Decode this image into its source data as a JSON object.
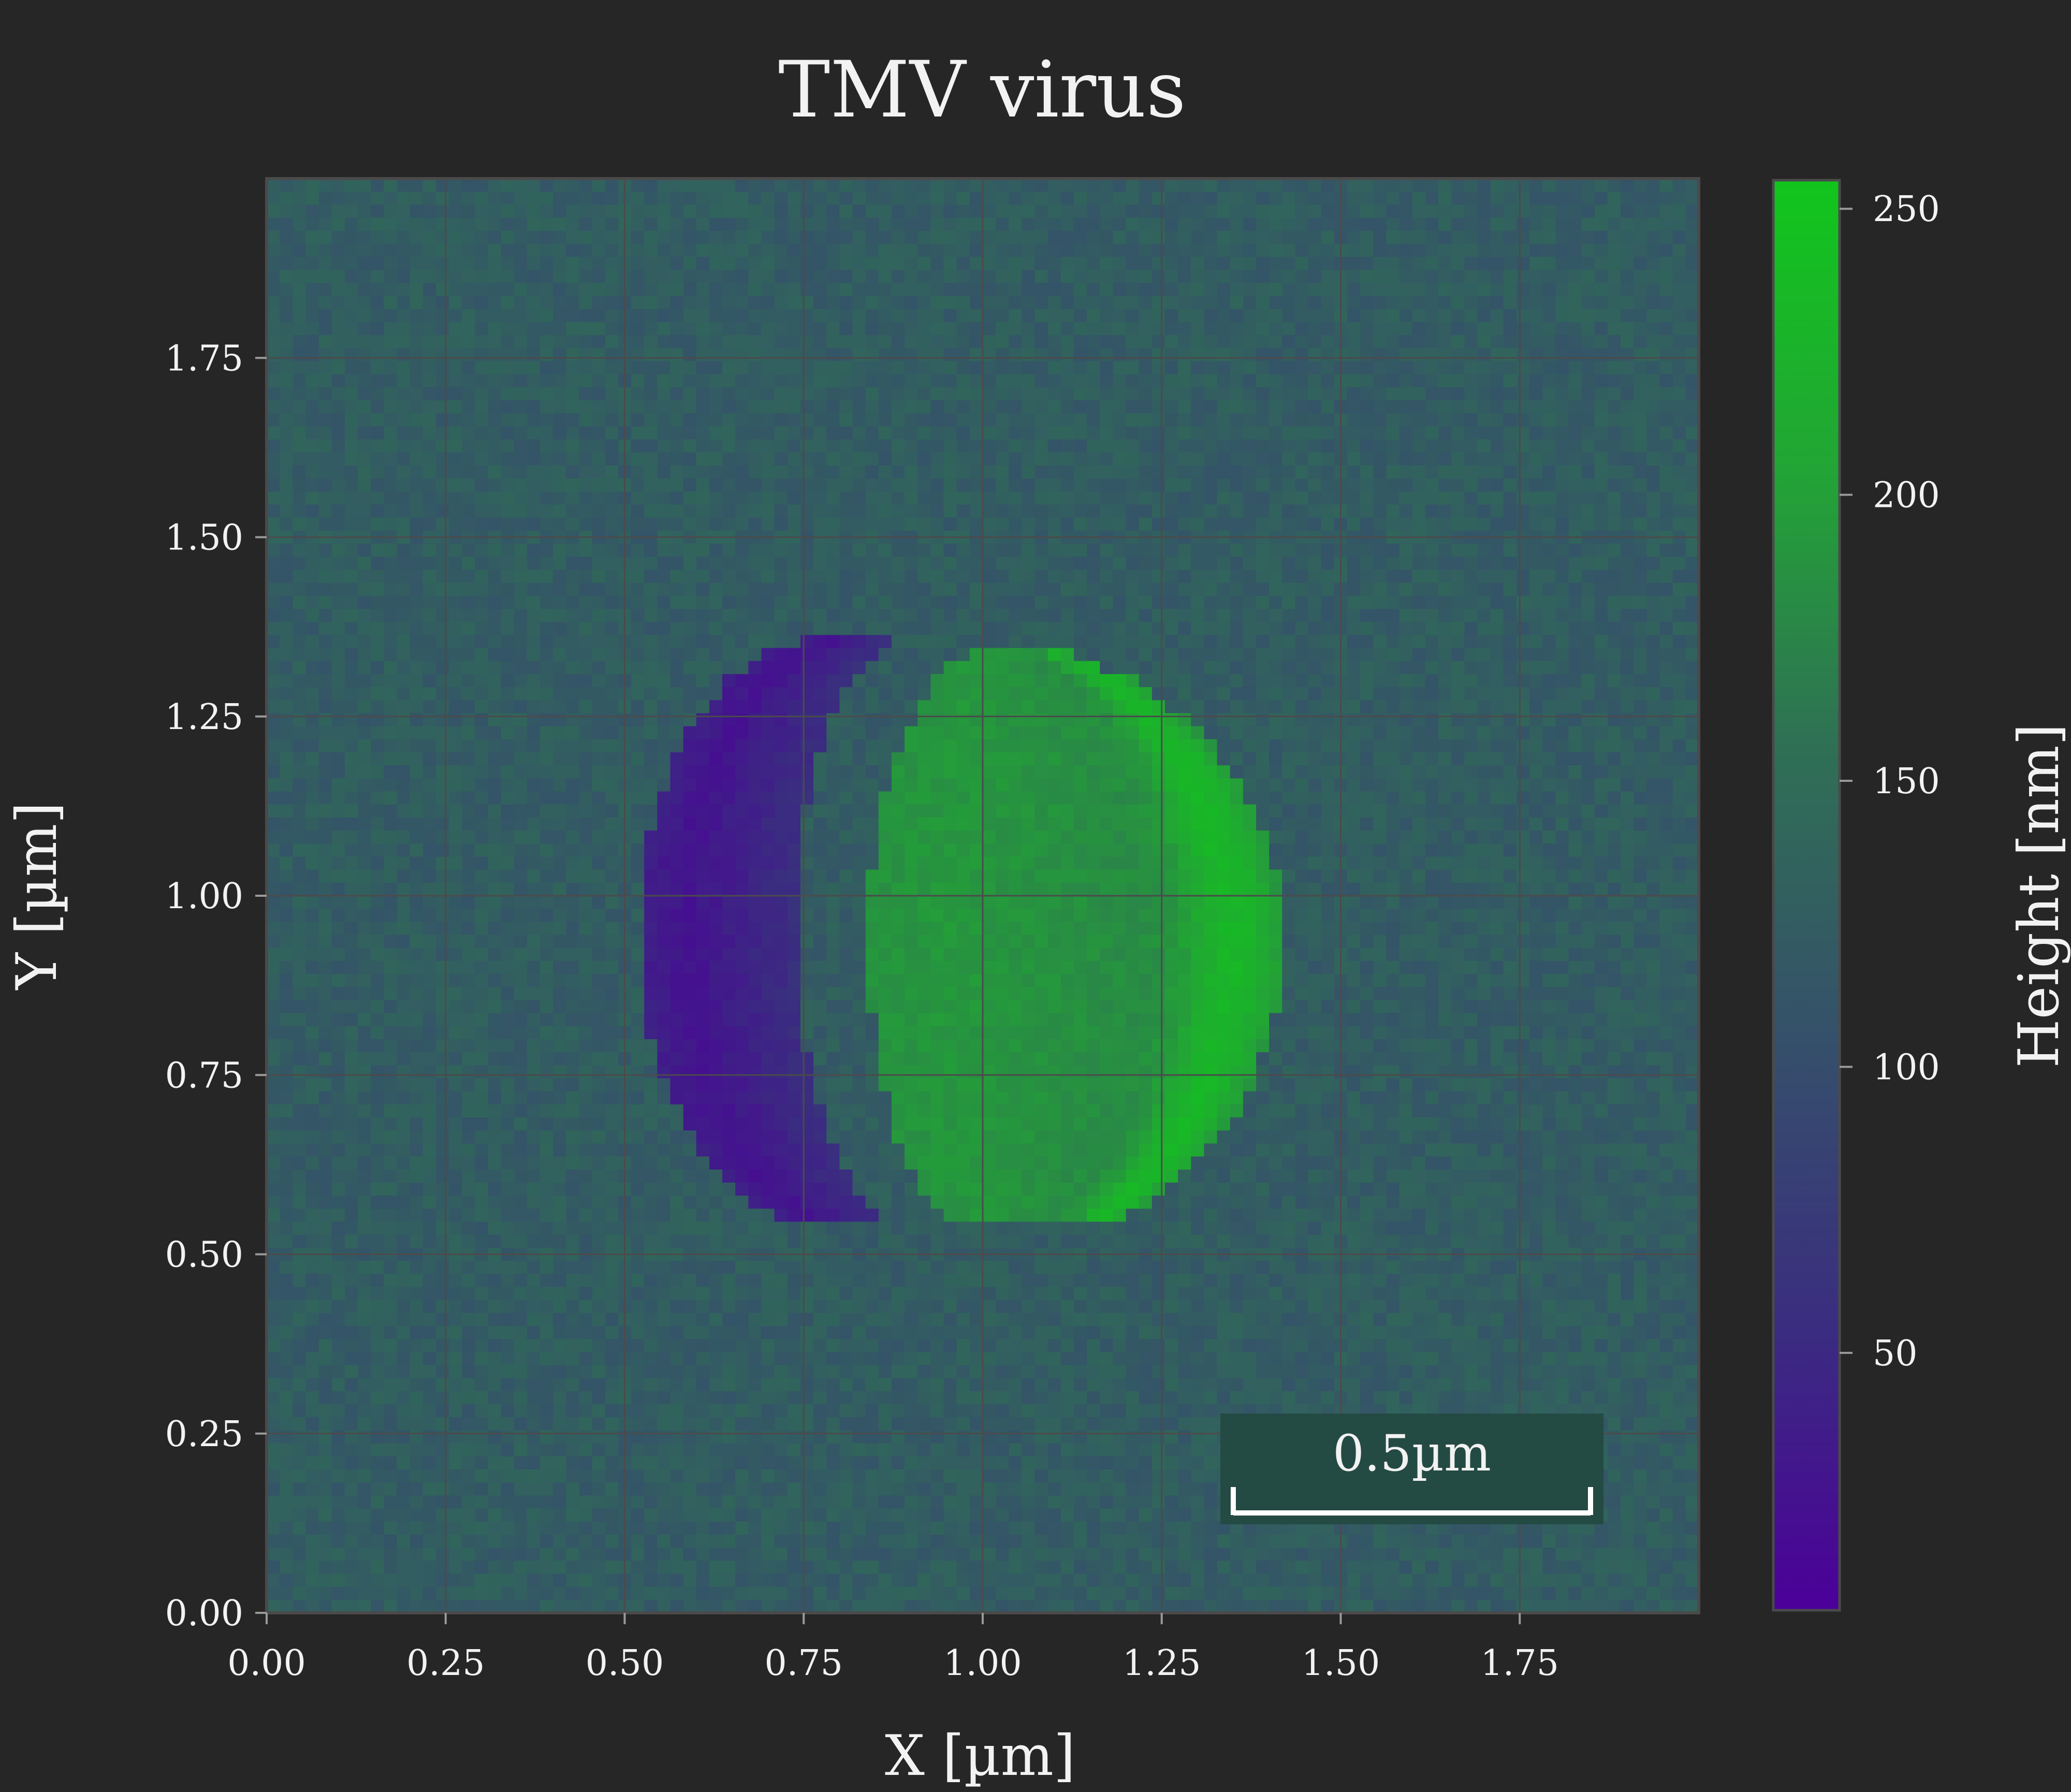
{
  "chart_data": {
    "type": "heatmap",
    "title": "TMV virus",
    "xlabel": "X [µm]",
    "ylabel": "Y [µm]",
    "xlim": [
      0,
      2
    ],
    "ylim": [
      0,
      2
    ],
    "x_ticks": [
      "0.00",
      "0.25",
      "0.50",
      "0.75",
      "1.00",
      "1.25",
      "1.50",
      "1.75"
    ],
    "y_ticks": [
      "0.00",
      "0.25",
      "0.50",
      "0.75",
      "1.00",
      "1.25",
      "1.50",
      "1.75"
    ],
    "grid": true,
    "colorbar": {
      "label": "Height [nm]",
      "range": [
        5,
        255
      ],
      "ticks": [
        "50",
        "100",
        "150",
        "200",
        "250"
      ],
      "colors": [
        "#4b0099",
        "#3a2d80",
        "#35506a",
        "#2f6f55",
        "#22a535",
        "#11c51c"
      ]
    },
    "background_height_nm": 125,
    "features": [
      {
        "shape": "crescent",
        "center_um": [
          0.62,
          0.95
        ],
        "min_height_nm": 10
      },
      {
        "shape": "crescent",
        "center_um": [
          1.2,
          0.95
        ],
        "max_height_nm": 250
      }
    ],
    "scale_bar": {
      "label": "0.5µm",
      "length_um": 0.5
    }
  }
}
